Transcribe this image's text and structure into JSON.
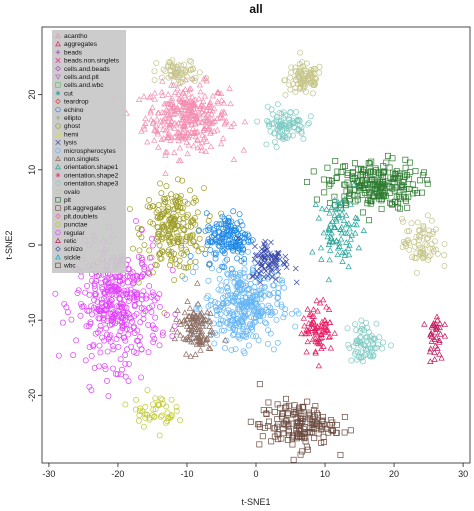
{
  "chart_data": {
    "type": "scatter",
    "title": "all",
    "xlabel": "t-SNE1",
    "ylabel": "t-SNE2",
    "xlim": [
      -31,
      31
    ],
    "ylim": [
      -29,
      29
    ],
    "x_ticks": [
      -30,
      -20,
      -10,
      0,
      10,
      20,
      30
    ],
    "y_ticks": [
      -20,
      -10,
      0,
      10,
      20
    ],
    "grid": false,
    "legend_position": "top-left",
    "series": [
      {
        "name": "acantho",
        "color": "#f48fb1",
        "marker": "triangle"
      },
      {
        "name": "aggregates",
        "color": "#e91e63",
        "marker": "triangle"
      },
      {
        "name": "beads",
        "color": "#9c27b0",
        "marker": "plus"
      },
      {
        "name": "beads.non.singlets",
        "color": "#ff1493",
        "marker": "cross"
      },
      {
        "name": "cells.and.beads",
        "color": "#ab47bc",
        "marker": "diamond"
      },
      {
        "name": "cells.and.plt",
        "color": "#ba68c8",
        "marker": "triangle-down"
      },
      {
        "name": "cells.and.wbc",
        "color": "#66bb6a",
        "marker": "square"
      },
      {
        "name": "cut",
        "color": "#26a69a",
        "marker": "star"
      },
      {
        "name": "teardrop",
        "color": "#e53935",
        "marker": "diamond"
      },
      {
        "name": "echino",
        "color": "#1e88e5",
        "marker": "circle"
      },
      {
        "name": "ellipto",
        "color": "#7cb342",
        "marker": "plus"
      },
      {
        "name": "ghost",
        "color": "#9e9d24",
        "marker": "circle"
      },
      {
        "name": "hemi",
        "color": "#d4e157",
        "marker": "square"
      },
      {
        "name": "lysis",
        "color": "#3949ab",
        "marker": "cross"
      },
      {
        "name": "microspherocytes",
        "color": "#64b5f6",
        "marker": "circle"
      },
      {
        "name": "non.singlets",
        "color": "#8d6e63",
        "marker": "triangle"
      },
      {
        "name": "orientation.shape1",
        "color": "#26a69a",
        "marker": "triangle"
      },
      {
        "name": "orientation.shape2",
        "color": "#ec407a",
        "marker": "star"
      },
      {
        "name": "orientation.shape3",
        "color": "#80cbc4",
        "marker": "circle"
      },
      {
        "name": "ovalo",
        "color": "#c5c58a",
        "marker": "circle"
      },
      {
        "name": "plt",
        "color": "#2e7d32",
        "marker": "square"
      },
      {
        "name": "plt.aggregates",
        "color": "#795548",
        "marker": "square"
      },
      {
        "name": "plt.doublets",
        "color": "#f06292",
        "marker": "diamond"
      },
      {
        "name": "punctae",
        "color": "#c0ca33",
        "marker": "circle"
      },
      {
        "name": "regular",
        "color": "#e040fb",
        "marker": "circle"
      },
      {
        "name": "retic",
        "color": "#c2185b",
        "marker": "triangle"
      },
      {
        "name": "schizo",
        "color": "#3f51b5",
        "marker": "diamond"
      },
      {
        "name": "sickle",
        "color": "#00acc1",
        "marker": "triangle"
      },
      {
        "name": "wbc",
        "color": "#6d4c41",
        "marker": "square"
      }
    ],
    "clusters": [
      {
        "series": "acantho",
        "center": [
          -10,
          17
        ],
        "spread": [
          5.5,
          4
        ],
        "n": 320
      },
      {
        "series": "ovalo",
        "center": [
          7,
          22
        ],
        "spread": [
          2.5,
          2
        ],
        "n": 90
      },
      {
        "series": "ghost",
        "center": [
          -12,
          2
        ],
        "spread": [
          4,
          5
        ],
        "n": 220
      },
      {
        "series": "plt",
        "center": [
          17,
          8
        ],
        "spread": [
          6,
          3
        ],
        "n": 230
      },
      {
        "series": "ovalo",
        "center": [
          -11,
          23
        ],
        "spread": [
          3,
          1.5
        ],
        "n": 60
      },
      {
        "series": "regular",
        "center": [
          -20,
          -8
        ],
        "spread": [
          5.5,
          7
        ],
        "n": 380
      },
      {
        "series": "microspherocytes",
        "center": [
          -2,
          -8
        ],
        "spread": [
          5,
          5
        ],
        "n": 330
      },
      {
        "series": "echino",
        "center": [
          -4,
          1
        ],
        "spread": [
          3,
          3
        ],
        "n": 150
      },
      {
        "series": "lysis",
        "center": [
          2,
          -2
        ],
        "spread": [
          2.5,
          2.5
        ],
        "n": 80
      },
      {
        "series": "orientation.shape3",
        "center": [
          4,
          16
        ],
        "spread": [
          3,
          2
        ],
        "n": 90
      },
      {
        "series": "orientation.shape1",
        "center": [
          12,
          2
        ],
        "spread": [
          2.5,
          4
        ],
        "n": 80
      },
      {
        "series": "wbc",
        "center": [
          6,
          -24
        ],
        "spread": [
          5,
          2.8
        ],
        "n": 160
      },
      {
        "series": "non.singlets",
        "center": [
          -9,
          -11
        ],
        "spread": [
          2.5,
          3
        ],
        "n": 110
      },
      {
        "series": "ovalo",
        "center": [
          24,
          0
        ],
        "spread": [
          2.5,
          3
        ],
        "n": 70
      },
      {
        "series": "aggregates",
        "center": [
          9,
          -11
        ],
        "spread": [
          2,
          3
        ],
        "n": 80
      },
      {
        "series": "orientation.shape3",
        "center": [
          16,
          -13
        ],
        "spread": [
          2.5,
          2.5
        ],
        "n": 70
      },
      {
        "series": "punctae",
        "center": [
          -15,
          -22
        ],
        "spread": [
          3,
          2
        ],
        "n": 45
      },
      {
        "series": "retic",
        "center": [
          26,
          -12
        ],
        "spread": [
          1,
          3
        ],
        "n": 35
      }
    ]
  }
}
